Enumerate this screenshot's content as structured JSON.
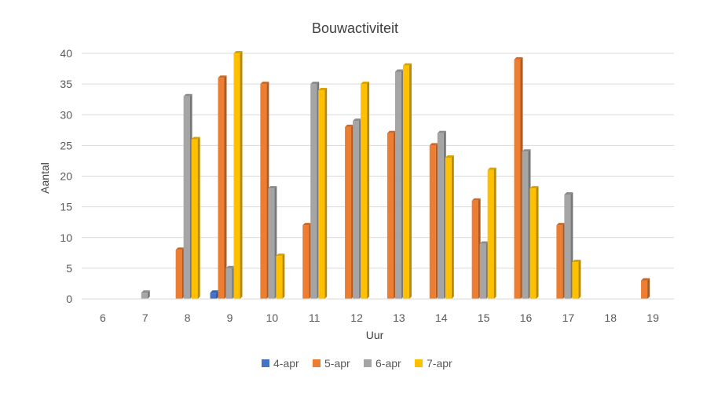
{
  "chart_data": {
    "type": "bar",
    "title": "Bouwactiviteit",
    "xlabel": "Uur",
    "ylabel": "Aantal",
    "ylim": [
      0,
      40
    ],
    "yticks": [
      "0",
      "5",
      "10",
      "15",
      "20",
      "25",
      "30",
      "35",
      "40"
    ],
    "grid": true,
    "legend_position": "bottom",
    "categories": [
      "6",
      "7",
      "8",
      "9",
      "10",
      "11",
      "12",
      "13",
      "14",
      "15",
      "16",
      "17",
      "18",
      "19"
    ],
    "series": [
      {
        "name": "4-apr",
        "color": "#4472c4",
        "values": [
          0,
          0,
          0,
          1,
          0,
          0,
          0,
          0,
          0,
          0,
          0,
          0,
          0,
          0
        ]
      },
      {
        "name": "5-apr",
        "color": "#ed7d31",
        "values": [
          0,
          0,
          8,
          36,
          35,
          12,
          28,
          27,
          25,
          16,
          39,
          12,
          0,
          3
        ]
      },
      {
        "name": "6-apr",
        "color": "#a5a5a5",
        "values": [
          0,
          1,
          33,
          5,
          18,
          35,
          29,
          37,
          27,
          9,
          24,
          17,
          0,
          0
        ]
      },
      {
        "name": "7-apr",
        "color": "#ffc000",
        "values": [
          0,
          0,
          26,
          40,
          7,
          34,
          35,
          38,
          23,
          21,
          18,
          6,
          0,
          0
        ]
      }
    ]
  }
}
